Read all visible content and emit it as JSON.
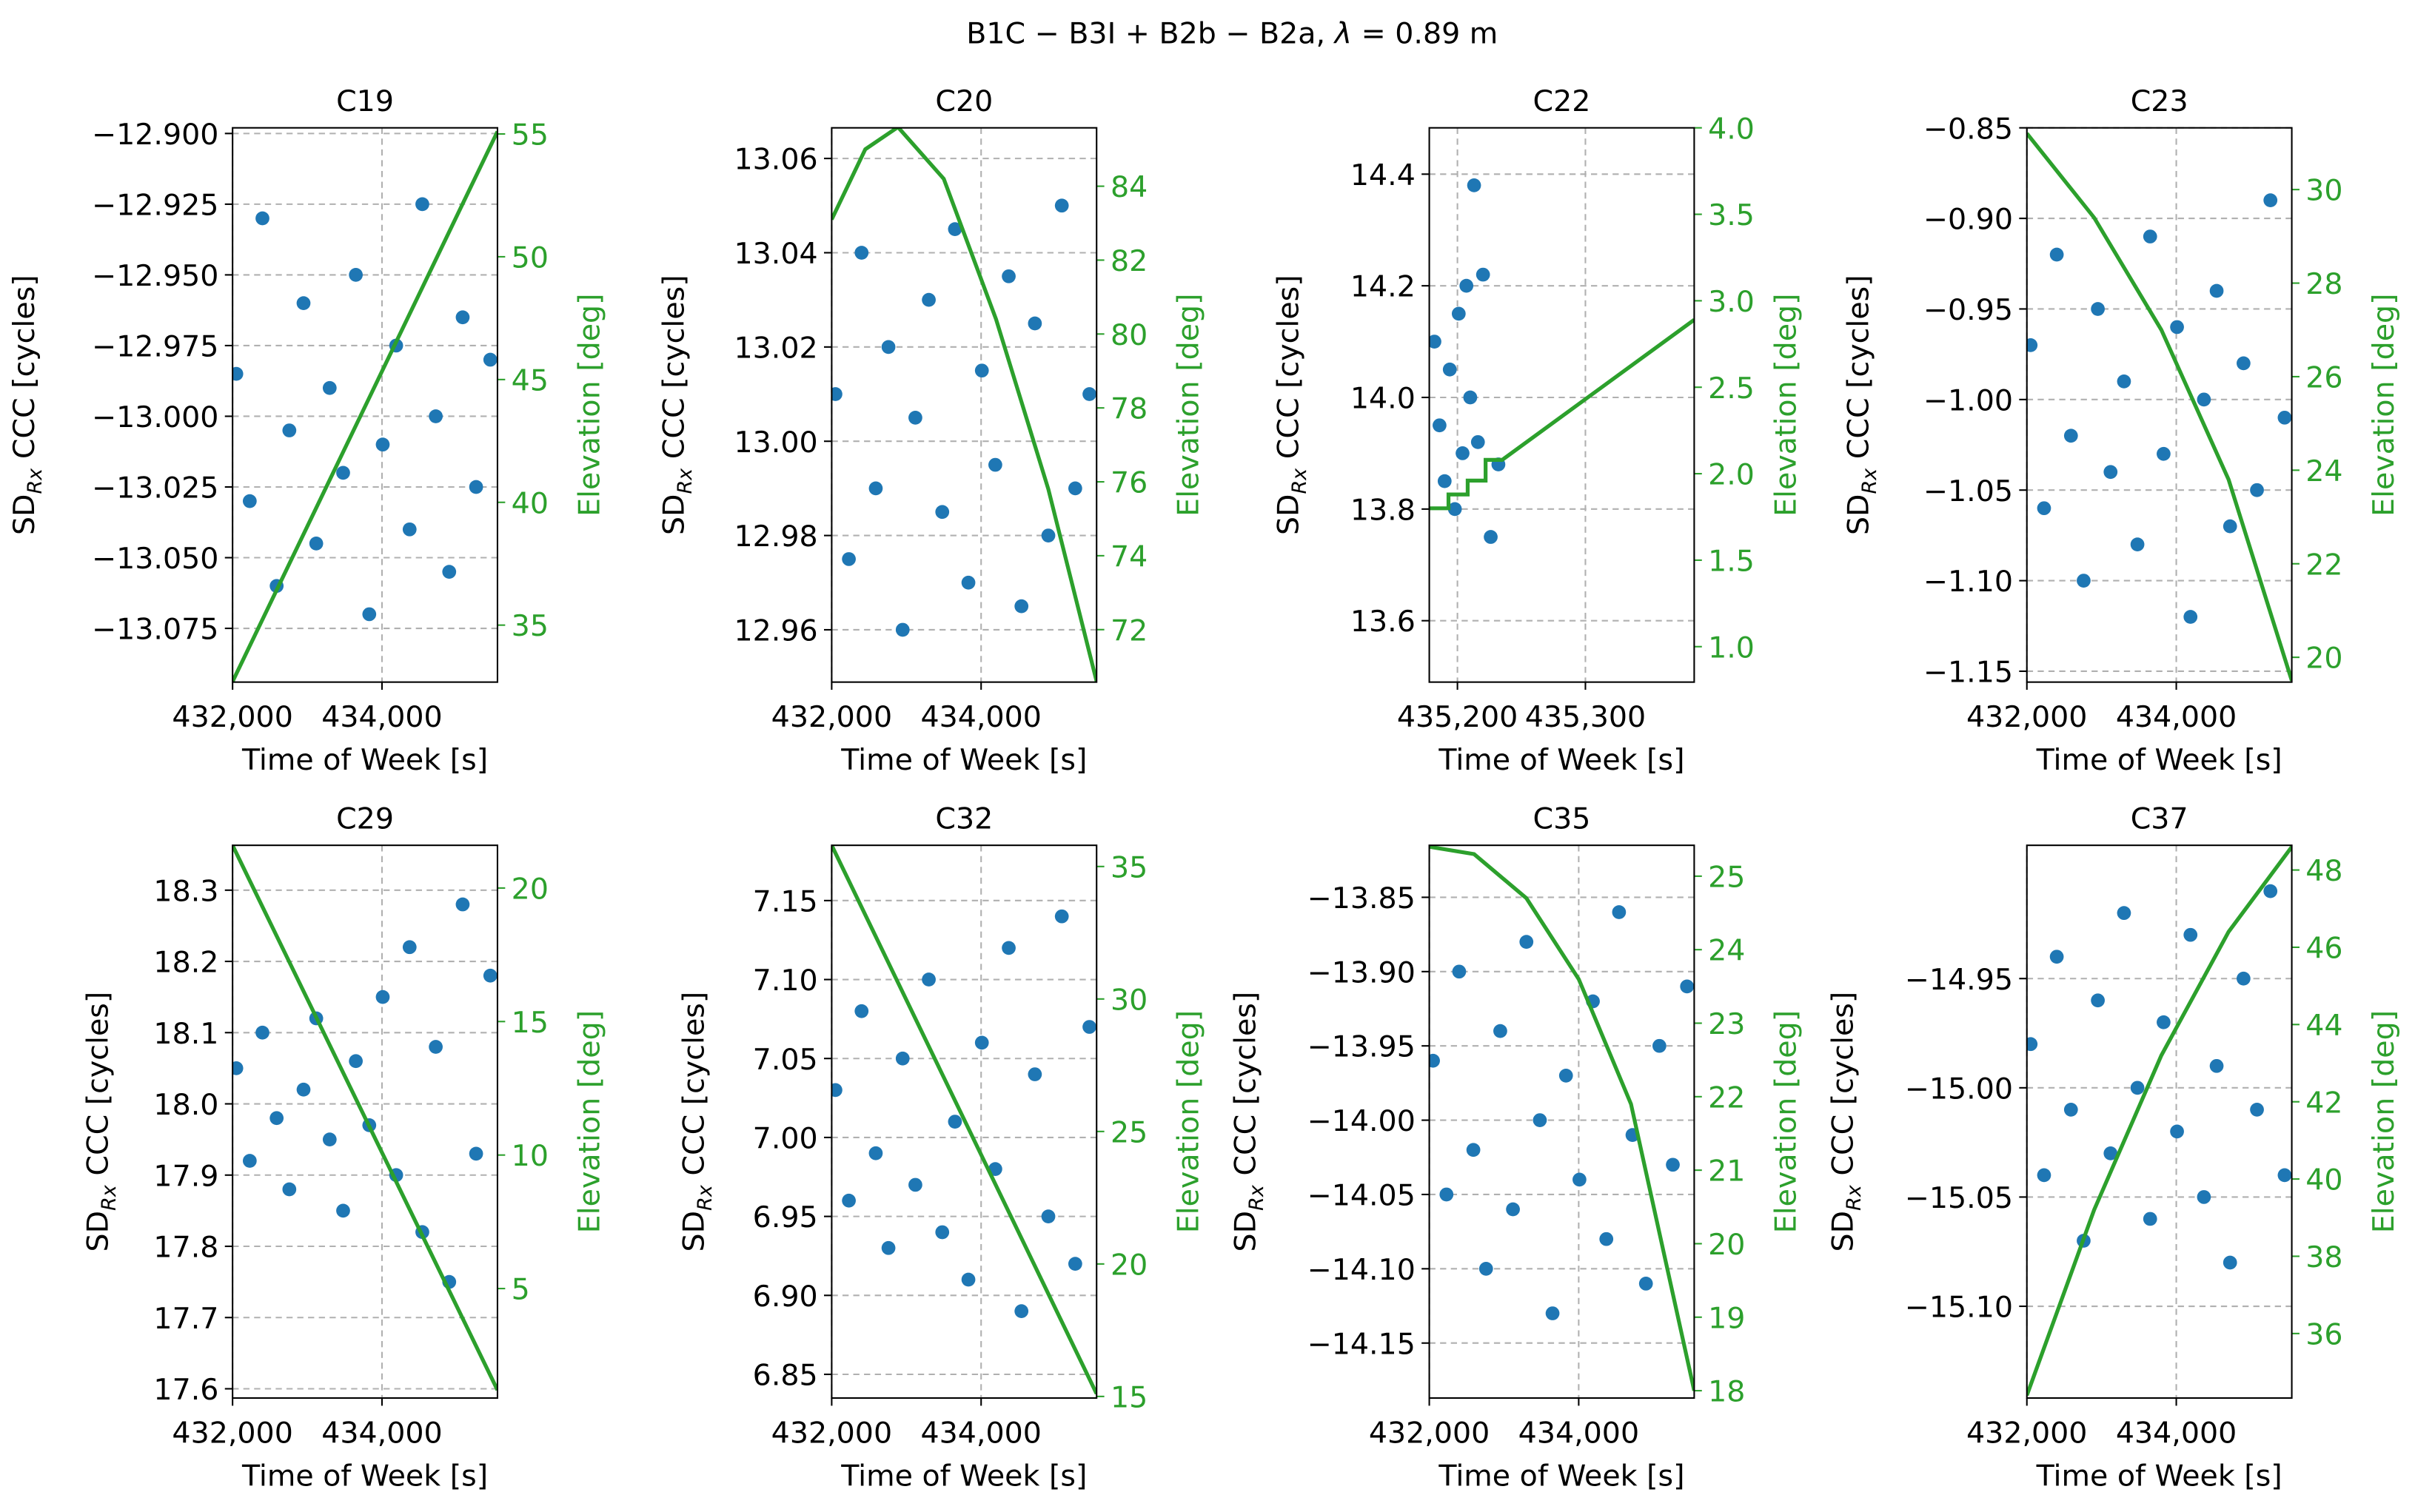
{
  "title": [
    "B1C − B3I + B2b − B2a, ",
    "λ",
    " = 0.89 m"
  ],
  "chart_data": [
    {
      "type": "scatter",
      "title": "C19",
      "xlabel": "Time of Week [s]",
      "ylabel": [
        "SD",
        "Rx",
        " CCC [cycles]"
      ],
      "y2label": "Elevation [deg]",
      "grid": true,
      "xlim": [
        432000,
        435546
      ],
      "xticks": [
        {
          "value": 432000,
          "label": "432,000"
        },
        {
          "value": 434000,
          "label": "434,000"
        }
      ],
      "ylim": [
        -13.094,
        -12.898
      ],
      "yticks": [
        {
          "value": -12.9,
          "label": "−12.900"
        },
        {
          "value": -12.925,
          "label": "−12.925"
        },
        {
          "value": -12.95,
          "label": "−12.950"
        },
        {
          "value": -12.975,
          "label": "−12.975"
        },
        {
          "value": -13.0,
          "label": "−13.000"
        },
        {
          "value": -13.025,
          "label": "−13.025"
        },
        {
          "value": -13.05,
          "label": "−13.050"
        },
        {
          "value": -13.075,
          "label": "−13.075"
        }
      ],
      "y2lim": [
        32.68,
        55.25
      ],
      "y2ticks": [
        35,
        40,
        45,
        50,
        55
      ],
      "color": "#1f77b4",
      "x": [
        432050,
        432230,
        432400,
        432590,
        432760,
        432950,
        433120,
        433300,
        433480,
        433650,
        433830,
        434010,
        434190,
        434370,
        434540,
        434720,
        434900,
        435080,
        435260,
        435450
      ],
      "values": [
        -12.985,
        -13.03,
        -12.93,
        -13.06,
        -13.005,
        -12.96,
        -13.045,
        -12.99,
        -13.02,
        -12.95,
        -13.07,
        -13.01,
        -12.975,
        -13.04,
        -12.925,
        -13.0,
        -13.055,
        -12.965,
        -13.025,
        -12.98
      ],
      "line": {
        "axis": "y2",
        "color": "#2ca02c",
        "x": [
          432000,
          435546
        ],
        "values": [
          32.7,
          55.1
        ]
      }
    },
    {
      "type": "scatter",
      "title": "C20",
      "xlabel": "Time of Week [s]",
      "ylabel": [
        "SD",
        "Rx",
        " CCC [cycles]"
      ],
      "y2label": "Elevation [deg]",
      "grid": true,
      "xlim": [
        432000,
        435546
      ],
      "xticks": [
        {
          "value": 432000,
          "label": "432,000"
        },
        {
          "value": 434000,
          "label": "434,000"
        }
      ],
      "ylim": [
        12.9489,
        13.0665
      ],
      "yticks": [
        12.96,
        12.98,
        {
          "value": 13.0,
          "label": "13.00"
        },
        13.02,
        13.04,
        13.06
      ],
      "y2lim": [
        70.58,
        85.58
      ],
      "y2ticks": [
        72,
        74,
        76,
        78,
        80,
        82,
        84
      ],
      "color": "#1f77b4",
      "x": [
        432050,
        432230,
        432400,
        432590,
        432760,
        432950,
        433120,
        433300,
        433480,
        433650,
        433830,
        434010,
        434190,
        434370,
        434540,
        434720,
        434900,
        435080,
        435260,
        435450
      ],
      "values": [
        13.01,
        12.975,
        13.04,
        12.99,
        13.02,
        12.96,
        13.005,
        13.03,
        12.985,
        13.045,
        12.97,
        13.015,
        12.995,
        13.035,
        12.965,
        13.025,
        12.98,
        13.05,
        12.99,
        13.01
      ],
      "line": {
        "axis": "y2",
        "color": "#2ca02c",
        "x": [
          432000,
          432450,
          432887,
          433500,
          434200,
          434900,
          435546
        ],
        "values": [
          83.1,
          85.0,
          85.6,
          84.2,
          80.4,
          75.8,
          70.6
        ]
      }
    },
    {
      "type": "scatter",
      "title": "C22",
      "xlabel": "Time of Week [s]",
      "ylabel": [
        "SD",
        "Rx",
        " CCC [cycles]"
      ],
      "y2label": "Elevation [deg]",
      "grid": true,
      "xlim": [
        435178,
        435385
      ],
      "xticks": [
        {
          "value": 435200,
          "label": "435,200"
        },
        {
          "value": 435300,
          "label": "435,300"
        }
      ],
      "ylim": [
        13.49,
        14.483
      ],
      "yticks": [
        13.6,
        13.8,
        {
          "value": 14.0,
          "label": "14.0"
        },
        14.2,
        14.4
      ],
      "y2lim": [
        0.795,
        4.0
      ],
      "y2ticks": [
        {
          "value": 1.0,
          "label": "1.0"
        },
        1.5,
        {
          "value": 2.0,
          "label": "2.0"
        },
        2.5,
        {
          "value": 3.0,
          "label": "3.0"
        },
        3.5,
        {
          "value": 4.0,
          "label": "4.0"
        }
      ],
      "color": "#1f77b4",
      "x": [
        435182,
        435186,
        435190,
        435194,
        435198,
        435201,
        435204,
        435207,
        435210,
        435213,
        435216,
        435220,
        435226,
        435232
      ],
      "values": [
        14.1,
        13.95,
        13.85,
        14.05,
        13.8,
        14.15,
        13.9,
        14.2,
        14.0,
        14.38,
        13.92,
        14.22,
        13.75,
        13.88
      ],
      "line": {
        "axis": "y2",
        "color": "#2ca02c",
        "x": [
          435178,
          435193,
          435193,
          435208,
          435208,
          435222,
          435222,
          435235,
          435385
        ],
        "values": [
          1.8,
          1.8,
          1.88,
          1.88,
          1.96,
          1.96,
          2.08,
          2.08,
          2.89
        ]
      }
    },
    {
      "type": "scatter",
      "title": "C23",
      "xlabel": "Time of Week [s]",
      "ylabel": [
        "SD",
        "Rx",
        " CCC [cycles]"
      ],
      "y2label": "Elevation [deg]",
      "grid": true,
      "xlim": [
        432000,
        435546
      ],
      "xticks": [
        {
          "value": 432000,
          "label": "432,000"
        },
        {
          "value": 434000,
          "label": "434,000"
        }
      ],
      "ylim": [
        -1.156,
        -0.85
      ],
      "yticks": [
        {
          "value": -0.85,
          "label": "−0.85"
        },
        {
          "value": -0.9,
          "label": "−0.90"
        },
        {
          "value": -0.95,
          "label": "−0.95"
        },
        {
          "value": -1.0,
          "label": "−1.00"
        },
        {
          "value": -1.05,
          "label": "−1.05"
        },
        {
          "value": -1.1,
          "label": "−1.10"
        },
        {
          "value": -1.15,
          "label": "−1.15"
        }
      ],
      "y2lim": [
        19.47,
        31.32
      ],
      "y2ticks": [
        20,
        22,
        24,
        26,
        28,
        30
      ],
      "color": "#1f77b4",
      "x": [
        432050,
        432230,
        432400,
        432590,
        432760,
        432950,
        433120,
        433300,
        433480,
        433650,
        433830,
        434010,
        434190,
        434370,
        434540,
        434720,
        434900,
        435080,
        435260,
        435450
      ],
      "values": [
        -0.97,
        -1.06,
        -0.92,
        -1.02,
        -1.1,
        -0.95,
        -1.04,
        -0.99,
        -1.08,
        -0.91,
        -1.03,
        -0.96,
        -1.12,
        -1.0,
        -0.94,
        -1.07,
        -0.98,
        -1.05,
        -0.89,
        -1.01
      ],
      "line": {
        "axis": "y2",
        "color": "#2ca02c",
        "x": [
          432000,
          432900,
          433800,
          434700,
          435546
        ],
        "values": [
          31.2,
          29.4,
          27.0,
          23.8,
          19.5
        ]
      }
    },
    {
      "type": "scatter",
      "title": "C29",
      "xlabel": "Time of Week [s]",
      "ylabel": [
        "SD",
        "Rx",
        " CCC [cycles]"
      ],
      "y2label": "Elevation [deg]",
      "grid": true,
      "xlim": [
        432000,
        435546
      ],
      "xticks": [
        {
          "value": 432000,
          "label": "432,000"
        },
        {
          "value": 434000,
          "label": "434,000"
        }
      ],
      "ylim": [
        17.587,
        18.363
      ],
      "yticks": [
        17.6,
        17.7,
        17.8,
        17.9,
        {
          "value": 18.0,
          "label": "18.0"
        },
        18.1,
        18.2,
        18.3
      ],
      "y2lim": [
        0.9,
        21.6
      ],
      "y2ticks": [
        5,
        10,
        15,
        20
      ],
      "color": "#1f77b4",
      "x": [
        432050,
        432230,
        432400,
        432590,
        432760,
        432950,
        433120,
        433300,
        433480,
        433650,
        433830,
        434010,
        434190,
        434370,
        434540,
        434720,
        434900,
        435080,
        435260,
        435450
      ],
      "values": [
        18.05,
        17.92,
        18.1,
        17.98,
        17.88,
        18.02,
        18.12,
        17.95,
        17.85,
        18.06,
        17.97,
        18.15,
        17.9,
        18.22,
        17.82,
        18.08,
        17.75,
        18.28,
        17.93,
        18.18
      ],
      "line": {
        "axis": "y2",
        "color": "#2ca02c",
        "x": [
          432000,
          435546
        ],
        "values": [
          21.6,
          1.2
        ]
      }
    },
    {
      "type": "scatter",
      "title": "C32",
      "xlabel": "Time of Week [s]",
      "ylabel": [
        "SD",
        "Rx",
        " CCC [cycles]"
      ],
      "y2label": "Elevation [deg]",
      "grid": true,
      "xlim": [
        432000,
        435546
      ],
      "xticks": [
        {
          "value": 432000,
          "label": "432,000"
        },
        {
          "value": 434000,
          "label": "434,000"
        }
      ],
      "ylim": [
        6.835,
        7.185
      ],
      "yticks": [
        6.85,
        {
          "value": 6.9,
          "label": "6.90"
        },
        6.95,
        {
          "value": 7.0,
          "label": "7.00"
        },
        7.05,
        {
          "value": 7.1,
          "label": "7.10"
        },
        7.15
      ],
      "y2lim": [
        14.94,
        35.8
      ],
      "y2ticks": [
        15,
        20,
        25,
        30,
        35
      ],
      "color": "#1f77b4",
      "x": [
        432050,
        432230,
        432400,
        432590,
        432760,
        432950,
        433120,
        433300,
        433480,
        433650,
        433830,
        434010,
        434190,
        434370,
        434540,
        434720,
        434900,
        435080,
        435260,
        435450
      ],
      "values": [
        7.03,
        6.96,
        7.08,
        6.99,
        6.93,
        7.05,
        6.97,
        7.1,
        6.94,
        7.01,
        6.91,
        7.06,
        6.98,
        7.12,
        6.89,
        7.04,
        6.95,
        7.14,
        6.92,
        7.07
      ],
      "line": {
        "axis": "y2",
        "color": "#2ca02c",
        "x": [
          432000,
          435546
        ],
        "values": [
          35.8,
          15.1
        ]
      }
    },
    {
      "type": "scatter",
      "title": "C35",
      "xlabel": "Time of Week [s]",
      "ylabel": [
        "SD",
        "Rx",
        " CCC [cycles]"
      ],
      "y2label": "Elevation [deg]",
      "grid": true,
      "xlim": [
        432000,
        435546
      ],
      "xticks": [
        {
          "value": 432000,
          "label": "432,000"
        },
        {
          "value": 434000,
          "label": "434,000"
        }
      ],
      "ylim": [
        -14.187,
        -13.815
      ],
      "yticks": [
        {
          "value": -13.85,
          "label": "−13.85"
        },
        {
          "value": -13.9,
          "label": "−13.90"
        },
        {
          "value": -13.95,
          "label": "−13.95"
        },
        {
          "value": -14.0,
          "label": "−14.00"
        },
        {
          "value": -14.05,
          "label": "−14.05"
        },
        {
          "value": -14.1,
          "label": "−14.10"
        },
        {
          "value": -14.15,
          "label": "−14.15"
        }
      ],
      "y2lim": [
        17.9,
        25.42
      ],
      "y2ticks": [
        18,
        19,
        20,
        21,
        22,
        23,
        24,
        25
      ],
      "color": "#1f77b4",
      "x": [
        432050,
        432230,
        432400,
        432590,
        432760,
        432950,
        433120,
        433300,
        433480,
        433650,
        433830,
        434010,
        434190,
        434370,
        434540,
        434720,
        434900,
        435080,
        435260,
        435450
      ],
      "values": [
        -13.96,
        -14.05,
        -13.9,
        -14.02,
        -14.1,
        -13.94,
        -14.06,
        -13.88,
        -14.0,
        -14.13,
        -13.97,
        -14.04,
        -13.92,
        -14.08,
        -13.86,
        -14.01,
        -14.11,
        -13.95,
        -14.03,
        -13.91
      ],
      "line": {
        "axis": "y2",
        "color": "#2ca02c",
        "x": [
          432000,
          432600,
          433300,
          434000,
          434700,
          435546
        ],
        "values": [
          25.4,
          25.3,
          24.7,
          23.6,
          21.9,
          18.0
        ]
      }
    },
    {
      "type": "scatter",
      "title": "C37",
      "xlabel": "Time of Week [s]",
      "ylabel": [
        "SD",
        "Rx",
        " CCC [cycles]"
      ],
      "y2label": "Elevation [deg]",
      "grid": true,
      "xlim": [
        432000,
        435546
      ],
      "xticks": [
        {
          "value": 432000,
          "label": "432,000"
        },
        {
          "value": 434000,
          "label": "434,000"
        }
      ],
      "ylim": [
        -15.142,
        -14.889
      ],
      "yticks": [
        {
          "value": -14.95,
          "label": "−14.95"
        },
        {
          "value": -15.0,
          "label": "−15.00"
        },
        {
          "value": -15.05,
          "label": "−15.05"
        },
        {
          "value": -15.1,
          "label": "−15.10"
        }
      ],
      "y2lim": [
        34.33,
        48.64
      ],
      "y2ticks": [
        36,
        38,
        40,
        42,
        44,
        46,
        48
      ],
      "color": "#1f77b4",
      "x": [
        432050,
        432230,
        432400,
        432590,
        432760,
        432950,
        433120,
        433300,
        433480,
        433650,
        433830,
        434010,
        434190,
        434370,
        434540,
        434720,
        434900,
        435080,
        435260,
        435450
      ],
      "values": [
        -14.98,
        -15.04,
        -14.94,
        -15.01,
        -15.07,
        -14.96,
        -15.03,
        -14.92,
        -15.0,
        -15.06,
        -14.97,
        -15.02,
        -14.93,
        -15.05,
        -14.99,
        -15.08,
        -14.95,
        -15.01,
        -14.91,
        -15.04
      ],
      "line": {
        "axis": "y2",
        "color": "#2ca02c",
        "x": [
          432000,
          432900,
          433800,
          434700,
          435546
        ],
        "values": [
          34.4,
          39.2,
          43.2,
          46.4,
          48.6
        ]
      }
    }
  ]
}
